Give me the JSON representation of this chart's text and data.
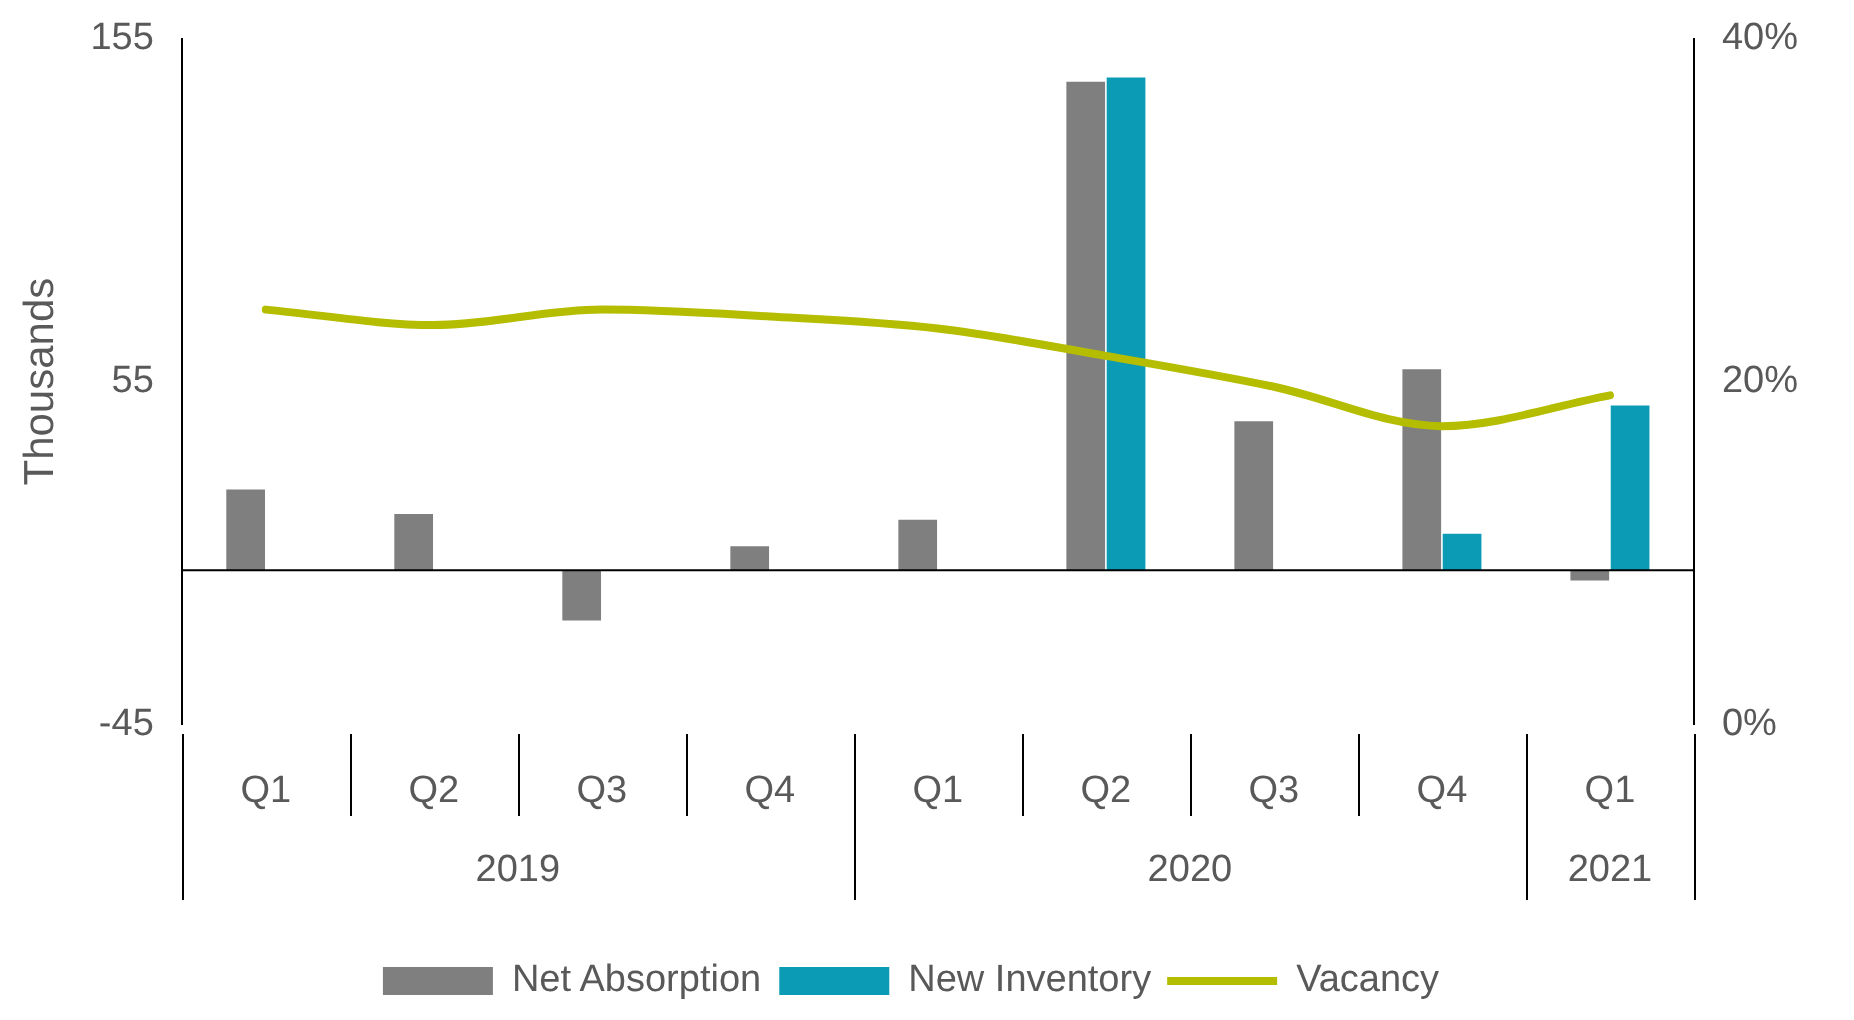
{
  "chart_data": {
    "type": "bar",
    "ylabel": "Thousands",
    "categories": [
      "Q1",
      "Q2",
      "Q3",
      "Q4",
      "Q1",
      "Q2",
      "Q3",
      "Q4",
      "Q1"
    ],
    "annotations": [
      "2019",
      "2020",
      "2021"
    ],
    "series": [
      {
        "name": "Net Absorption",
        "color": "#7f7f7f",
        "values": [
          23.5,
          16.4,
          -14.7,
          7,
          14.7,
          142.5,
          43.4,
          58.6,
          -3
        ]
      },
      {
        "name": "New Inventory",
        "color": "#0b9bb5",
        "values": [
          null,
          null,
          null,
          null,
          null,
          143.7,
          null,
          10.6,
          48
        ]
      },
      {
        "name": "Vacancy",
        "type": "line",
        "axis": "y2",
        "color": "#b5bd00",
        "marker": "none",
        "values": [
          24.2,
          23.3,
          24.2,
          23.8,
          23.1,
          21.5,
          19.7,
          17.4,
          19.2
        ]
      }
    ],
    "ylim": [
      -45,
      155
    ],
    "yticks": [
      -45,
      55,
      155
    ],
    "y2lim": [
      0,
      40
    ],
    "y2ticks": [
      {
        "value": 0,
        "label": "0%"
      },
      {
        "value": 20,
        "label": "20%"
      },
      {
        "value": 40,
        "label": "40%"
      }
    ],
    "grid": false,
    "legend": "bottom"
  }
}
